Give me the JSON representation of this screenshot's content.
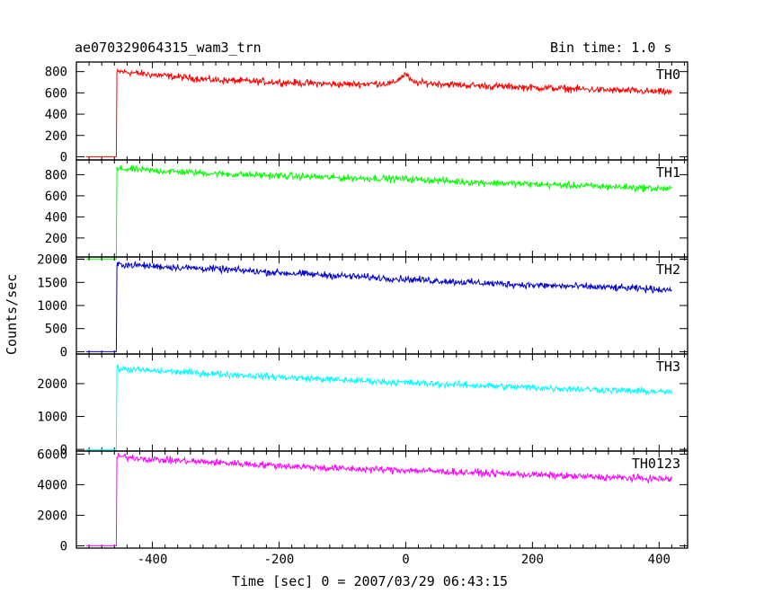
{
  "header": {
    "title": "ae070329064315_wam3_trn",
    "bin_time": "Bin time: 1.0 s"
  },
  "chart_data": {
    "type": "line",
    "title": "ae070329064315_wam3_trn",
    "xlabel": "Time [sec] 0 = 2007/03/29 06:43:15",
    "ylabel": "Counts/sec",
    "xlim": [
      -520,
      445
    ],
    "x_ticks": [
      -400,
      -200,
      0,
      200,
      400
    ],
    "grid": false,
    "series": [
      {
        "name": "TH0",
        "color": "#ff0000",
        "ylim": [
          -30,
          890
        ],
        "y_ticks": [
          0,
          200,
          400,
          600,
          800
        ],
        "x": [
          -505,
          -457,
          -456,
          -450,
          -400,
          -300,
          -200,
          -100,
          -20,
          0,
          10,
          100,
          200,
          300,
          400,
          420
        ],
        "y": [
          0,
          0,
          790,
          800,
          770,
          720,
          700,
          680,
          690,
          780,
          700,
          670,
          650,
          630,
          610,
          605
        ]
      },
      {
        "name": "TH1",
        "color": "#00ff00",
        "ylim": [
          20,
          940
        ],
        "y_ticks": [
          0,
          200,
          400,
          600,
          800
        ],
        "x": [
          -505,
          -457,
          -456,
          -450,
          -400,
          -300,
          -200,
          -100,
          0,
          100,
          200,
          300,
          400,
          420
        ],
        "y": [
          0,
          0,
          850,
          855,
          840,
          810,
          790,
          770,
          760,
          730,
          710,
          690,
          670,
          665
        ]
      },
      {
        "name": "TH2",
        "color": "#0000cc",
        "ylim": [
          -50,
          2050
        ],
        "y_ticks": [
          0,
          500,
          1000,
          1500,
          2000
        ],
        "x": [
          -505,
          -457,
          -456,
          -450,
          -400,
          -300,
          -200,
          -100,
          0,
          100,
          200,
          300,
          400,
          420
        ],
        "y": [
          0,
          0,
          1880,
          1890,
          1850,
          1790,
          1710,
          1640,
          1570,
          1500,
          1440,
          1400,
          1350,
          1340
        ]
      },
      {
        "name": "TH3",
        "color": "#00ffff",
        "ylim": [
          -50,
          2900
        ],
        "y_ticks": [
          0,
          1000,
          2000
        ],
        "x": [
          -505,
          -457,
          -456,
          -450,
          -400,
          -300,
          -200,
          -100,
          0,
          100,
          200,
          300,
          400,
          420
        ],
        "y": [
          0,
          0,
          2440,
          2450,
          2390,
          2300,
          2200,
          2110,
          2030,
          1950,
          1880,
          1820,
          1750,
          1740
        ]
      },
      {
        "name": "TH0123",
        "color": "#ff00ff",
        "ylim": [
          -150,
          6200
        ],
        "y_ticks": [
          0,
          2000,
          4000,
          6000
        ],
        "x": [
          -505,
          -457,
          -456,
          -450,
          -400,
          -300,
          -200,
          -100,
          0,
          100,
          200,
          300,
          400,
          420
        ],
        "y": [
          0,
          0,
          5820,
          5840,
          5650,
          5450,
          5250,
          5050,
          4950,
          4800,
          4650,
          4500,
          4380,
          4350
        ]
      }
    ]
  }
}
